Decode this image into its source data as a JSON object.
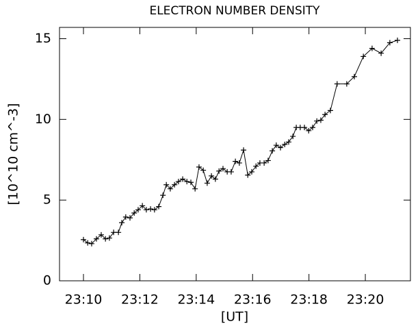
{
  "chart_data": {
    "type": "line",
    "title": "ELECTRON NUMBER DENSITY",
    "x_label": "[UT]",
    "y_label": "[10^10 cm^-3]",
    "color": "#000000",
    "marker": "plus",
    "x": [
      10.0,
      10.15,
      10.29,
      10.46,
      10.63,
      10.78,
      10.92,
      11.07,
      11.24,
      11.36,
      11.5,
      11.65,
      11.8,
      11.94,
      12.09,
      12.23,
      12.38,
      12.52,
      12.67,
      12.82,
      12.94,
      13.08,
      13.23,
      13.37,
      13.52,
      13.67,
      13.81,
      13.96,
      14.1,
      14.25,
      14.39,
      14.54,
      14.68,
      14.81,
      14.95,
      15.1,
      15.24,
      15.39,
      15.53,
      15.68,
      15.83,
      15.97,
      16.12,
      16.26,
      16.41,
      16.55,
      16.7,
      16.84,
      16.99,
      17.14,
      17.28,
      17.43,
      17.55,
      17.69,
      17.84,
      17.99,
      18.13,
      18.28,
      18.42,
      18.57,
      18.76,
      19.0,
      19.34,
      19.61,
      19.93,
      20.24,
      20.56,
      20.87,
      21.14
    ],
    "values": [
      2.55,
      2.35,
      2.3,
      2.6,
      2.85,
      2.6,
      2.65,
      3.0,
      3.0,
      3.6,
      3.95,
      3.9,
      4.2,
      4.4,
      4.65,
      4.4,
      4.45,
      4.4,
      4.6,
      5.3,
      5.95,
      5.7,
      5.95,
      6.15,
      6.3,
      6.15,
      6.1,
      5.7,
      7.05,
      6.85,
      6.05,
      6.5,
      6.3,
      6.8,
      6.95,
      6.75,
      6.75,
      7.4,
      7.3,
      8.1,
      6.55,
      6.75,
      7.1,
      7.3,
      7.3,
      7.45,
      8.05,
      8.4,
      8.25,
      8.45,
      8.6,
      8.95,
      9.5,
      9.5,
      9.5,
      9.3,
      9.5,
      9.9,
      9.95,
      10.3,
      10.55,
      12.2,
      12.2,
      12.65,
      13.9,
      14.4,
      14.1,
      14.75,
      14.9
    ],
    "xlim": [
      9.15,
      21.6
    ],
    "xticks": [
      {
        "value": 10,
        "label": "23:10"
      },
      {
        "value": 12,
        "label": "23:12"
      },
      {
        "value": 14,
        "label": "23:14"
      },
      {
        "value": 16,
        "label": "23:16"
      },
      {
        "value": 18,
        "label": "23:18"
      },
      {
        "value": 20,
        "label": "23:20"
      }
    ],
    "ylim": [
      0,
      15.7
    ],
    "yticks": [
      0,
      5,
      10,
      15
    ]
  }
}
